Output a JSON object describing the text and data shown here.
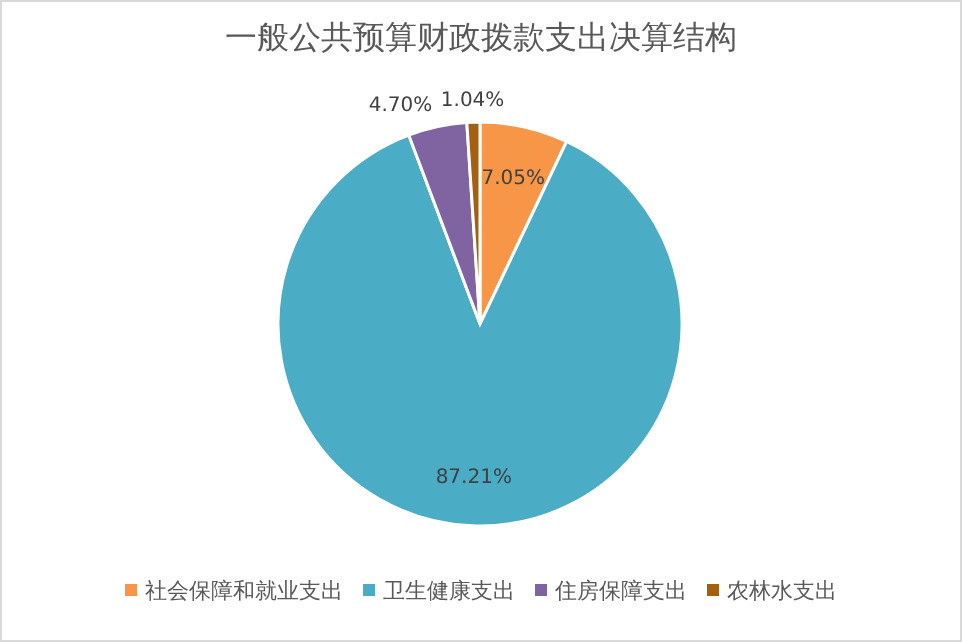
{
  "chart_data": {
    "type": "pie",
    "title": "一般公共预算财政拨款支出决算结构",
    "categories": [
      "社会保障和就业支出",
      "卫生健康支出",
      "住房保障支出",
      "农林水支出"
    ],
    "values": [
      7.05,
      87.21,
      4.7,
      1.04
    ],
    "colors": [
      "#f79646",
      "#4bacc6",
      "#8064a2",
      "#a5600f"
    ],
    "value_labels": [
      "7.05%",
      "87.21%",
      "4.70%",
      "1.04%"
    ],
    "legend": "bottom"
  }
}
